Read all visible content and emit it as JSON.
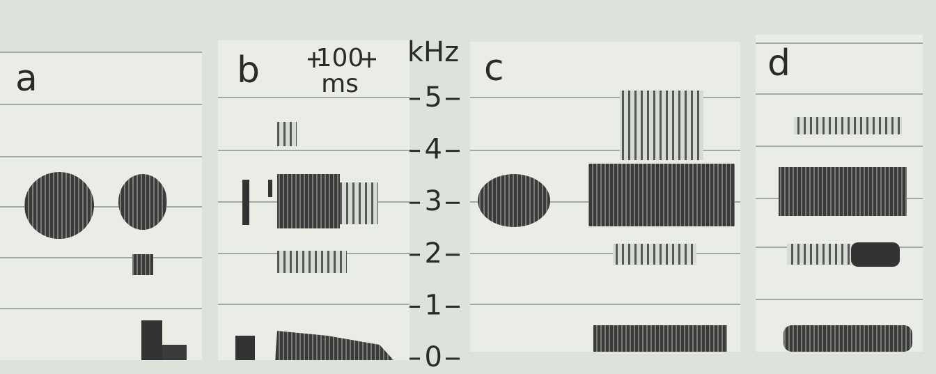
{
  "panels": [
    {
      "label": "a"
    },
    {
      "label": "b"
    },
    {
      "label": "c"
    },
    {
      "label": "d"
    }
  ],
  "scale_bar": {
    "value": "100",
    "unit": "ms"
  },
  "frequency_axis": {
    "unit": "kHz",
    "ticks": [
      "5",
      "4",
      "3",
      "2",
      "1",
      "0"
    ]
  }
}
